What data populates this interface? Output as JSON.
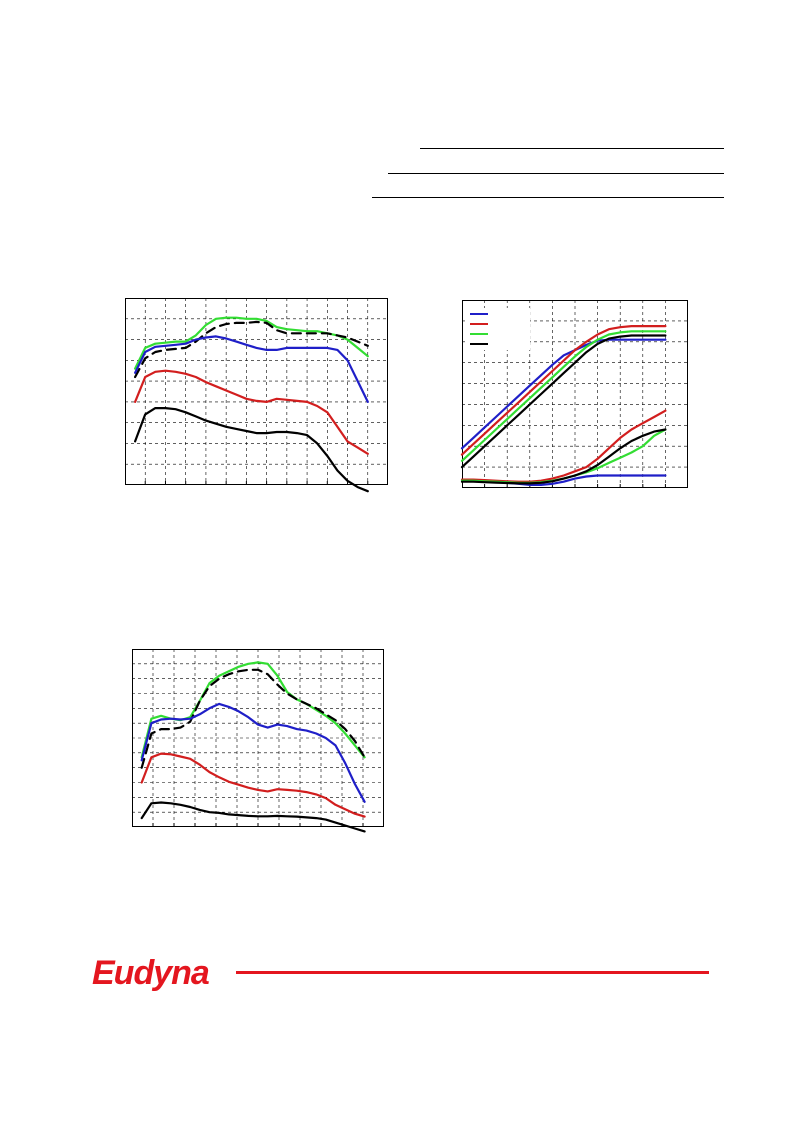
{
  "colors": {
    "blue": "#1f1fc8",
    "red": "#d21e1e",
    "green": "#33dd33",
    "black": "#000000",
    "brand": "#e4161f"
  },
  "brand": {
    "logo_text": "Eudyna",
    "logo_icon": "eudyna-logo"
  },
  "chart_data": [
    {
      "type": "line",
      "grid": true,
      "grid_style": "dashed",
      "xlim": [
        0,
        26
      ],
      "ylim": [
        0,
        9
      ],
      "series": [
        {
          "color": "green",
          "style": "solid",
          "x": [
            1,
            2,
            3,
            4,
            5,
            6,
            7,
            8,
            9,
            10,
            11,
            12,
            13,
            14,
            15,
            16,
            17,
            18,
            19,
            20,
            21,
            22,
            23,
            24
          ],
          "y": [
            5.6,
            6.6,
            6.8,
            6.85,
            6.9,
            6.9,
            7.2,
            7.7,
            8.0,
            8.05,
            8.05,
            8.0,
            8.0,
            7.9,
            7.6,
            7.5,
            7.45,
            7.4,
            7.4,
            7.3,
            7.2,
            7.0,
            6.6,
            6.2
          ]
        },
        {
          "color": "black",
          "style": "dashed",
          "x": [
            1,
            2,
            3,
            4,
            5,
            6,
            7,
            8,
            9,
            10,
            11,
            12,
            13,
            14,
            15,
            16,
            17,
            18,
            19,
            20,
            21,
            22,
            23,
            24
          ],
          "y": [
            5.2,
            6.1,
            6.4,
            6.5,
            6.55,
            6.6,
            6.9,
            7.3,
            7.6,
            7.75,
            7.8,
            7.8,
            7.85,
            7.8,
            7.45,
            7.3,
            7.3,
            7.3,
            7.3,
            7.3,
            7.2,
            7.1,
            6.9,
            6.7
          ]
        },
        {
          "color": "blue",
          "style": "solid",
          "x": [
            1,
            2,
            3,
            4,
            5,
            6,
            7,
            8,
            9,
            10,
            11,
            12,
            13,
            14,
            15,
            16,
            17,
            18,
            19,
            20,
            21,
            22,
            23,
            24
          ],
          "y": [
            5.4,
            6.4,
            6.65,
            6.7,
            6.75,
            6.8,
            7.0,
            7.1,
            7.15,
            7.05,
            6.9,
            6.75,
            6.6,
            6.5,
            6.5,
            6.6,
            6.6,
            6.6,
            6.6,
            6.6,
            6.5,
            6.0,
            5.0,
            4.0
          ]
        },
        {
          "color": "red",
          "style": "solid",
          "x": [
            1,
            2,
            3,
            4,
            5,
            6,
            7,
            8,
            9,
            10,
            11,
            12,
            13,
            14,
            15,
            16,
            17,
            18,
            19,
            20,
            21,
            22,
            23,
            24
          ],
          "y": [
            4.0,
            5.2,
            5.45,
            5.5,
            5.45,
            5.35,
            5.2,
            4.95,
            4.75,
            4.55,
            4.35,
            4.15,
            4.05,
            4.0,
            4.15,
            4.1,
            4.05,
            4.0,
            3.8,
            3.5,
            2.8,
            2.1,
            1.8,
            1.5
          ]
        },
        {
          "color": "black",
          "style": "solid",
          "x": [
            1,
            2,
            3,
            4,
            5,
            6,
            7,
            8,
            9,
            10,
            11,
            12,
            13,
            14,
            15,
            16,
            17,
            18,
            19,
            20,
            21,
            22,
            23,
            24
          ],
          "y": [
            2.1,
            3.4,
            3.7,
            3.7,
            3.65,
            3.5,
            3.3,
            3.1,
            2.95,
            2.8,
            2.7,
            2.6,
            2.5,
            2.5,
            2.55,
            2.55,
            2.5,
            2.4,
            2.0,
            1.4,
            0.7,
            0.2,
            -0.1,
            -0.3
          ]
        }
      ]
    },
    {
      "type": "line",
      "grid": true,
      "grid_style": "dashed",
      "legend_position": "top-left",
      "legend_entries": [
        "blue",
        "red",
        "green",
        "black"
      ],
      "xlim": [
        0,
        10
      ],
      "ylim": [
        0,
        9
      ],
      "series": [
        {
          "color": "blue",
          "style": "solid",
          "x": [
            0,
            0.5,
            1,
            1.5,
            2,
            2.5,
            3,
            3.5,
            4,
            4.5,
            5,
            5.5,
            6,
            6.5,
            7,
            7.5,
            8,
            8.5,
            9
          ],
          "y": [
            1.9,
            2.4,
            2.9,
            3.4,
            3.9,
            4.4,
            4.9,
            5.4,
            5.9,
            6.35,
            6.6,
            6.85,
            7.05,
            7.1,
            7.1,
            7.1,
            7.1,
            7.1,
            7.1
          ]
        },
        {
          "color": "red",
          "style": "solid",
          "x": [
            0,
            0.5,
            1,
            1.5,
            2,
            2.5,
            3,
            3.5,
            4,
            4.5,
            5,
            5.5,
            6,
            6.5,
            7,
            7.5,
            8,
            8.5,
            9
          ],
          "y": [
            1.6,
            2.1,
            2.6,
            3.1,
            3.6,
            4.1,
            4.6,
            5.1,
            5.6,
            6.1,
            6.6,
            7.0,
            7.35,
            7.6,
            7.7,
            7.75,
            7.75,
            7.75,
            7.75
          ]
        },
        {
          "color": "green",
          "style": "solid",
          "x": [
            0,
            0.5,
            1,
            1.5,
            2,
            2.5,
            3,
            3.5,
            4,
            4.5,
            5,
            5.5,
            6,
            6.5,
            7,
            7.5,
            8,
            8.5,
            9
          ],
          "y": [
            1.3,
            1.8,
            2.3,
            2.8,
            3.3,
            3.8,
            4.3,
            4.8,
            5.3,
            5.8,
            6.3,
            6.75,
            7.1,
            7.35,
            7.45,
            7.5,
            7.5,
            7.5,
            7.5
          ]
        },
        {
          "color": "black",
          "style": "solid",
          "x": [
            0,
            0.5,
            1,
            1.5,
            2,
            2.5,
            3,
            3.5,
            4,
            4.5,
            5,
            5.5,
            6,
            6.5,
            7,
            7.5,
            8,
            8.5,
            9
          ],
          "y": [
            1.0,
            1.5,
            2.0,
            2.5,
            3.0,
            3.5,
            4.0,
            4.5,
            5.0,
            5.5,
            6.0,
            6.5,
            6.9,
            7.15,
            7.25,
            7.3,
            7.3,
            7.3,
            7.3
          ]
        },
        {
          "color": "blue",
          "style": "solid",
          "x": [
            0,
            0.5,
            1,
            1.5,
            2,
            2.5,
            3,
            3.5,
            4,
            4.5,
            5,
            5.5,
            6,
            6.5,
            7,
            7.5,
            8,
            8.5,
            9
          ],
          "y": [
            0.35,
            0.35,
            0.3,
            0.28,
            0.25,
            0.2,
            0.15,
            0.15,
            0.2,
            0.3,
            0.45,
            0.55,
            0.6,
            0.6,
            0.6,
            0.6,
            0.6,
            0.6,
            0.6
          ]
        },
        {
          "color": "red",
          "style": "solid",
          "x": [
            0,
            0.5,
            1,
            1.5,
            2,
            2.5,
            3,
            3.5,
            4,
            4.5,
            5,
            5.5,
            6,
            6.5,
            7,
            7.5,
            8,
            8.5,
            9
          ],
          "y": [
            0.4,
            0.4,
            0.38,
            0.35,
            0.32,
            0.3,
            0.3,
            0.35,
            0.45,
            0.6,
            0.8,
            1.0,
            1.4,
            1.9,
            2.4,
            2.8,
            3.1,
            3.4,
            3.7
          ]
        },
        {
          "color": "green",
          "style": "solid",
          "x": [
            0,
            0.5,
            1,
            1.5,
            2,
            2.5,
            3,
            3.5,
            4,
            4.5,
            5,
            5.5,
            6,
            6.5,
            7,
            7.5,
            8,
            8.5,
            9
          ],
          "y": [
            0.35,
            0.35,
            0.32,
            0.3,
            0.28,
            0.25,
            0.25,
            0.28,
            0.35,
            0.45,
            0.6,
            0.75,
            0.95,
            1.2,
            1.45,
            1.7,
            2.0,
            2.5,
            2.8
          ]
        },
        {
          "color": "black",
          "style": "solid",
          "x": [
            0,
            0.5,
            1,
            1.5,
            2,
            2.5,
            3,
            3.5,
            4,
            4.5,
            5,
            5.5,
            6,
            6.5,
            7,
            7.5,
            8,
            8.5,
            9
          ],
          "y": [
            0.3,
            0.3,
            0.28,
            0.26,
            0.24,
            0.22,
            0.22,
            0.25,
            0.32,
            0.45,
            0.6,
            0.8,
            1.1,
            1.5,
            1.9,
            2.25,
            2.5,
            2.7,
            2.8
          ]
        }
      ]
    },
    {
      "type": "line",
      "grid": true,
      "grid_style": "dashed",
      "xlim": [
        0,
        26
      ],
      "ylim": [
        0,
        12
      ],
      "series": [
        {
          "color": "green",
          "style": "solid",
          "x": [
            1,
            2,
            3,
            4,
            5,
            6,
            7,
            8,
            9,
            10,
            11,
            12,
            13,
            14,
            15,
            16,
            17,
            18,
            19,
            20,
            21,
            22,
            23,
            24
          ],
          "y": [
            4.7,
            7.3,
            7.5,
            7.3,
            7.2,
            7.4,
            8.5,
            9.7,
            10.2,
            10.5,
            10.8,
            11.0,
            11.1,
            11.0,
            10.2,
            9.1,
            8.6,
            8.3,
            7.9,
            7.5,
            7.0,
            6.3,
            5.5,
            4.7
          ]
        },
        {
          "color": "black",
          "style": "dashed",
          "x": [
            1,
            2,
            3,
            4,
            5,
            6,
            7,
            8,
            9,
            10,
            11,
            12,
            13,
            14,
            15,
            16,
            17,
            18,
            19,
            20,
            21,
            22,
            23,
            24
          ],
          "y": [
            4.0,
            6.3,
            6.6,
            6.6,
            6.7,
            7.1,
            8.5,
            9.5,
            10.0,
            10.3,
            10.5,
            10.6,
            10.6,
            10.3,
            9.6,
            9.0,
            8.6,
            8.3,
            8.0,
            7.6,
            7.2,
            6.6,
            5.8,
            4.7
          ]
        },
        {
          "color": "blue",
          "style": "solid",
          "x": [
            1,
            2,
            3,
            4,
            5,
            6,
            7,
            8,
            9,
            10,
            11,
            12,
            13,
            14,
            15,
            16,
            17,
            18,
            19,
            20,
            21,
            22,
            23,
            24
          ],
          "y": [
            4.5,
            7.0,
            7.25,
            7.3,
            7.25,
            7.3,
            7.6,
            8.0,
            8.3,
            8.1,
            7.8,
            7.4,
            6.9,
            6.7,
            6.9,
            6.8,
            6.6,
            6.5,
            6.3,
            6.0,
            5.5,
            4.3,
            2.9,
            1.7
          ]
        },
        {
          "color": "red",
          "style": "solid",
          "x": [
            1,
            2,
            3,
            4,
            5,
            6,
            7,
            8,
            9,
            10,
            11,
            12,
            13,
            14,
            15,
            16,
            17,
            18,
            19,
            20,
            21,
            22,
            23,
            24
          ],
          "y": [
            3.0,
            4.7,
            4.95,
            4.9,
            4.75,
            4.6,
            4.2,
            3.7,
            3.35,
            3.05,
            2.85,
            2.65,
            2.5,
            2.4,
            2.55,
            2.5,
            2.45,
            2.35,
            2.2,
            1.95,
            1.5,
            1.2,
            0.9,
            0.7
          ]
        },
        {
          "color": "black",
          "style": "solid",
          "x": [
            1,
            2,
            3,
            4,
            5,
            6,
            7,
            8,
            9,
            10,
            11,
            12,
            13,
            14,
            15,
            16,
            17,
            18,
            19,
            20,
            21,
            22,
            23,
            24
          ],
          "y": [
            0.6,
            1.6,
            1.65,
            1.6,
            1.5,
            1.35,
            1.15,
            1.0,
            0.95,
            0.85,
            0.8,
            0.75,
            0.72,
            0.72,
            0.75,
            0.72,
            0.7,
            0.65,
            0.6,
            0.5,
            0.3,
            0.1,
            -0.1,
            -0.3
          ]
        }
      ]
    }
  ]
}
